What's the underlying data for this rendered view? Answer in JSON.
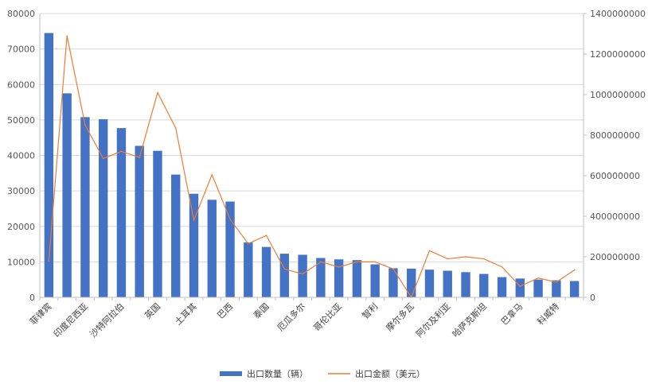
{
  "chart_data": {
    "type": "bar",
    "categories": [
      "菲律宾",
      "",
      "印度尼西亚",
      "",
      "沙特阿拉伯",
      "",
      "英国",
      "",
      "土耳其",
      "",
      "巴西",
      "",
      "泰国",
      "",
      "厄瓜多尔",
      "",
      "哥伦比亚",
      "",
      "智利",
      "",
      "摩尔多瓦",
      "",
      "阿尔及利亚",
      "",
      "哈萨克斯坦",
      "",
      "巴拿马",
      "",
      "科威特",
      ""
    ],
    "series": [
      {
        "name": "出口数量（辆）",
        "type": "bar",
        "axis": "left",
        "color": "#4472C4",
        "values": [
          74500,
          57500,
          50800,
          50200,
          47700,
          42700,
          41300,
          34600,
          29200,
          27500,
          27000,
          15500,
          14200,
          12300,
          12000,
          11100,
          10700,
          10500,
          9300,
          8200,
          8100,
          7800,
          7500,
          7100,
          6600,
          5700,
          5300,
          5000,
          4800,
          4600
        ]
      },
      {
        "name": "出口金额（美元）",
        "type": "line",
        "axis": "right",
        "color": "#ED7D31",
        "values": [
          180000000,
          1290000000,
          850000000,
          685000000,
          720000000,
          690000000,
          1010000000,
          835000000,
          380000000,
          605000000,
          385000000,
          265000000,
          305000000,
          140000000,
          115000000,
          175000000,
          150000000,
          175000000,
          175000000,
          140000000,
          0,
          230000000,
          190000000,
          200000000,
          190000000,
          150000000,
          55000000,
          95000000,
          75000000,
          135000000
        ]
      }
    ],
    "y_left": {
      "min": 0,
      "max": 80000,
      "step": 10000,
      "ticks": [
        "0",
        "10000",
        "20000",
        "30000",
        "40000",
        "50000",
        "60000",
        "70000",
        "80000"
      ]
    },
    "y_right": {
      "min": 0,
      "max": 1400000000,
      "step": 200000000,
      "ticks": [
        "0",
        "200000000",
        "400000000",
        "600000000",
        "800000000",
        "1000000000",
        "1200000000",
        "1400000000"
      ]
    },
    "grid": true,
    "legend": "bottom-center",
    "legend_items": [
      {
        "label": "出口数量（辆）",
        "kind": "bar",
        "color": "#4472C4"
      },
      {
        "label": "出口金额（美元）",
        "kind": "line",
        "color": "#ED7D31"
      }
    ]
  }
}
